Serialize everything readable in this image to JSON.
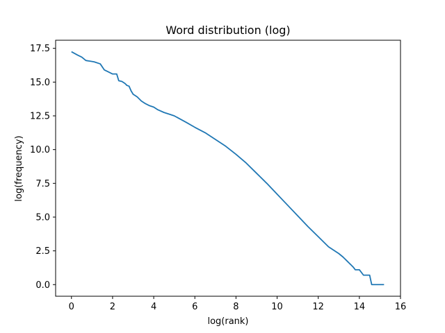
{
  "chart_data": {
    "type": "line",
    "title": "Word distribution (log)",
    "xlabel": "log(rank)",
    "ylabel": "log(frequency)",
    "xlim": [
      -0.77,
      16.0
    ],
    "ylim": [
      -0.86,
      18.1
    ],
    "x_ticks": [
      0,
      2,
      4,
      6,
      8,
      10,
      12,
      14,
      16
    ],
    "x_tick_labels": [
      "0",
      "2",
      "4",
      "6",
      "8",
      "10",
      "12",
      "14",
      "16"
    ],
    "y_ticks": [
      0.0,
      2.5,
      5.0,
      7.5,
      10.0,
      12.5,
      15.0,
      17.5
    ],
    "y_tick_labels": [
      "0.0",
      "2.5",
      "5.0",
      "7.5",
      "10.0",
      "12.5",
      "15.0",
      "17.5"
    ],
    "grid": false,
    "line_color": "#1f77b4",
    "series": [
      {
        "x": [
          0.0,
          0.3,
          0.5,
          0.7,
          0.9,
          1.1,
          1.4,
          1.6,
          1.8,
          2.0,
          2.2,
          2.3,
          2.45,
          2.6,
          2.7,
          2.8,
          2.9,
          3.0,
          3.1,
          3.2,
          3.4,
          3.6,
          3.8,
          4.0,
          4.2,
          4.5,
          4.8,
          5.0,
          5.3,
          5.6,
          6.0,
          6.5,
          7.0,
          7.5,
          8.0,
          8.5,
          9.0,
          9.5,
          10.0,
          10.5,
          11.0,
          11.5,
          12.0,
          12.5,
          13.0,
          13.2,
          13.3,
          13.4,
          13.5,
          13.6,
          13.7,
          13.8,
          14.0,
          14.2,
          14.5,
          14.6,
          15.0,
          15.2
        ],
        "y": [
          17.25,
          17.0,
          16.85,
          16.6,
          16.55,
          16.5,
          16.35,
          15.9,
          15.75,
          15.6,
          15.6,
          15.1,
          15.05,
          14.9,
          14.75,
          14.7,
          14.35,
          14.1,
          14.0,
          13.9,
          13.6,
          13.4,
          13.25,
          13.15,
          12.95,
          12.75,
          12.6,
          12.5,
          12.25,
          12.0,
          11.65,
          11.25,
          10.75,
          10.25,
          9.65,
          9.0,
          8.25,
          7.5,
          6.7,
          5.9,
          5.1,
          4.3,
          3.55,
          2.8,
          2.3,
          2.05,
          1.9,
          1.75,
          1.6,
          1.45,
          1.3,
          1.1,
          1.1,
          0.7,
          0.7,
          0.0,
          0.0,
          0.0
        ]
      }
    ]
  }
}
